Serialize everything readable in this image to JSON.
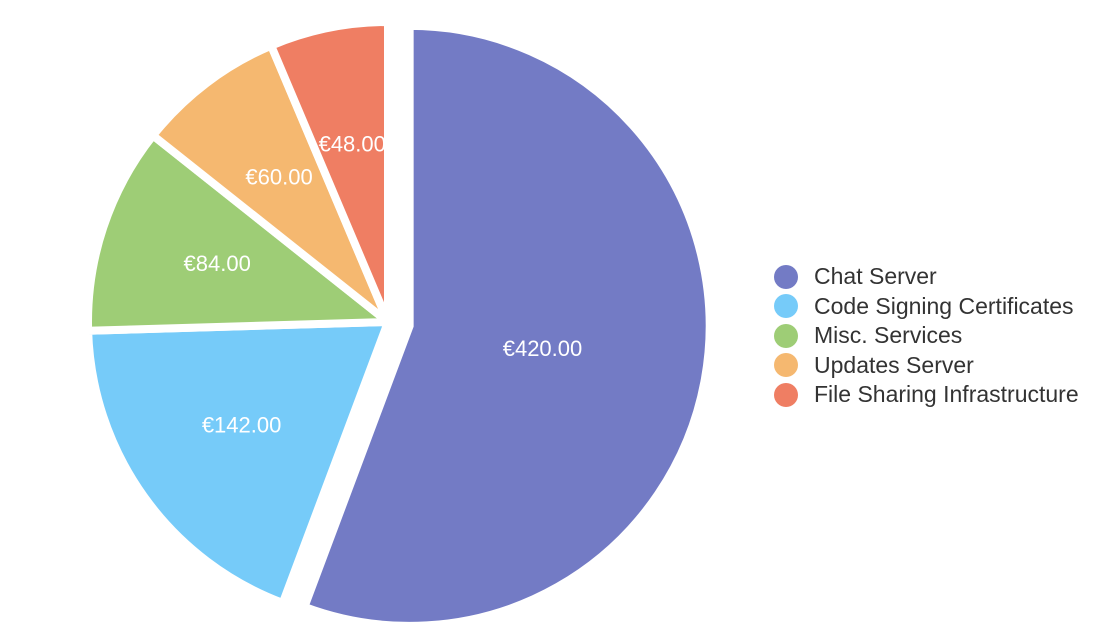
{
  "chart_data": {
    "type": "pie",
    "title": "",
    "legend_position": "right",
    "slices": [
      {
        "label": "Chat Server",
        "value": 420.0,
        "display": "€420.00",
        "color": "#737bc5"
      },
      {
        "label": "Code Signing Certificates",
        "value": 142.0,
        "display": "€142.00",
        "color": "#76cbf9"
      },
      {
        "label": "Misc. Services",
        "value": 84.0,
        "display": "€84.00",
        "color": "#9ecd76"
      },
      {
        "label": "Updates Server",
        "value": 60.0,
        "display": "€60.00",
        "color": "#f5b870"
      },
      {
        "label": "File Sharing Infrastructure",
        "value": 48.0,
        "display": "€48.00",
        "color": "#ef7e63"
      }
    ]
  }
}
